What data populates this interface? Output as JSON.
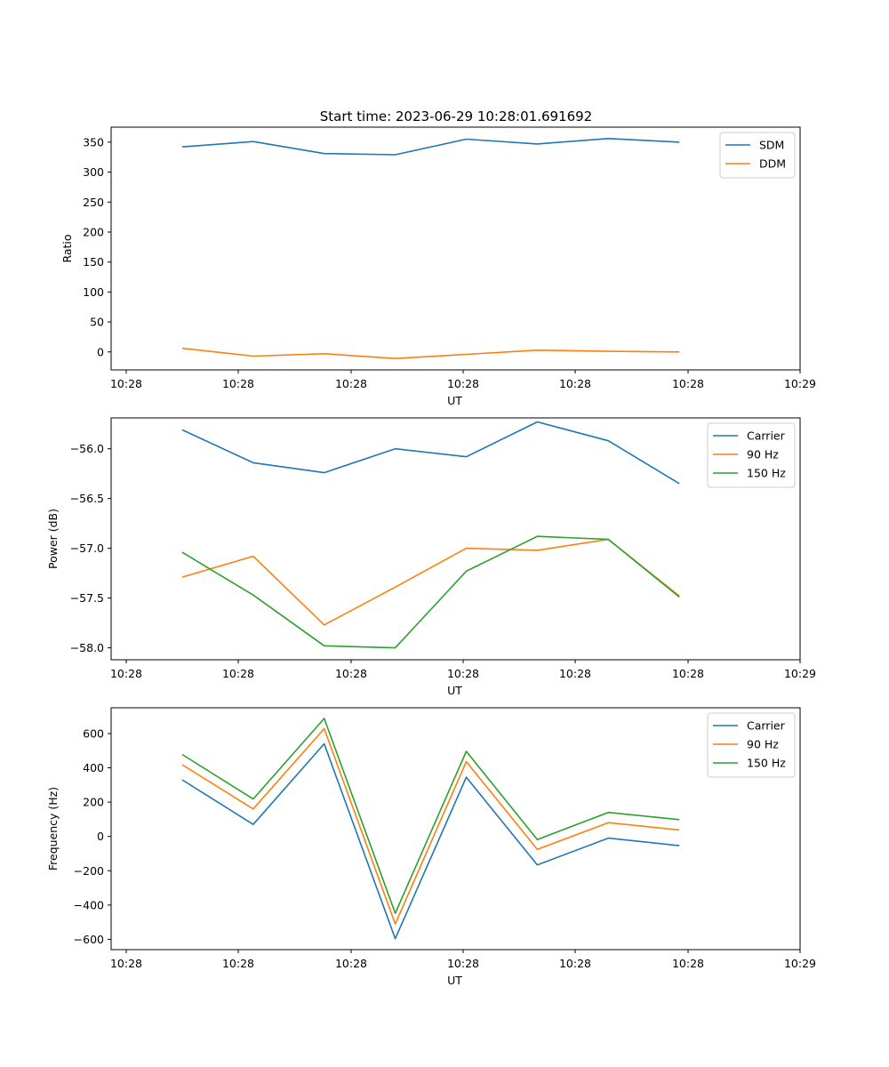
{
  "chart_data": [
    {
      "type": "line",
      "title": "Start time: 2023-06-29 10:28:01.691692",
      "xlabel": "UT",
      "ylabel": "Ratio",
      "x_tick_labels": [
        "10:28",
        "10:28",
        "10:28",
        "10:28",
        "10:28",
        "10:28",
        "10:29"
      ],
      "y_ticks": [
        0,
        50,
        100,
        150,
        200,
        250,
        300,
        350
      ],
      "xlim": [
        0,
        9.7
      ],
      "ylim": [
        -30,
        375
      ],
      "x": [
        1,
        2,
        3,
        4,
        5,
        6,
        7,
        8
      ],
      "series": [
        {
          "name": "SDM",
          "color": "#1f77b4",
          "values": [
            342,
            351,
            331,
            329,
            355,
            347,
            356,
            350
          ]
        },
        {
          "name": "DDM",
          "color": "#ff7f0e",
          "values": [
            6,
            -7,
            -3,
            -11,
            -4,
            3,
            1,
            0
          ]
        }
      ],
      "legend": "upper-right",
      "grid": false
    },
    {
      "type": "line",
      "title": "",
      "xlabel": "UT",
      "ylabel": "Power (dB)",
      "x_tick_labels": [
        "10:28",
        "10:28",
        "10:28",
        "10:28",
        "10:28",
        "10:28",
        "10:29"
      ],
      "y_ticks": [
        -58.0,
        -57.5,
        -57.0,
        -56.5,
        -56.0
      ],
      "y_tick_labels": [
        "−58.0",
        "−57.5",
        "−57.0",
        "−56.5",
        "−56.0"
      ],
      "xlim": [
        0,
        9.7
      ],
      "ylim": [
        -58.12,
        -55.69
      ],
      "x": [
        1,
        2,
        3,
        4,
        5,
        6,
        7,
        8
      ],
      "series": [
        {
          "name": "Carrier",
          "color": "#1f77b4",
          "values": [
            -55.81,
            -56.14,
            -56.24,
            -56.0,
            -56.08,
            -55.73,
            -55.92,
            -56.35
          ]
        },
        {
          "name": "90 Hz",
          "color": "#ff7f0e",
          "values": [
            -57.29,
            -57.08,
            -57.77,
            -57.39,
            -57.0,
            -57.02,
            -56.91,
            -57.48
          ]
        },
        {
          "name": "150 Hz",
          "color": "#2ca02c",
          "values": [
            -57.04,
            -57.47,
            -57.98,
            -58.0,
            -57.23,
            -56.88,
            -56.91,
            -57.49
          ]
        }
      ],
      "legend": "upper-right",
      "grid": false
    },
    {
      "type": "line",
      "title": "",
      "xlabel": "UT",
      "ylabel": "Frequency (Hz)",
      "x_tick_labels": [
        "10:28",
        "10:28",
        "10:28",
        "10:28",
        "10:28",
        "10:28",
        "10:29"
      ],
      "y_ticks": [
        -600,
        -400,
        -200,
        0,
        200,
        400,
        600
      ],
      "y_tick_labels": [
        "−600",
        "−400",
        "−200",
        "0",
        "200",
        "400",
        "600"
      ],
      "xlim": [
        0,
        9.7
      ],
      "ylim": [
        -660,
        750
      ],
      "x": [
        1,
        2,
        3,
        4,
        5,
        6,
        7,
        8
      ],
      "series": [
        {
          "name": "Carrier",
          "color": "#1f77b4",
          "values": [
            330,
            70,
            540,
            -596,
            345,
            -166,
            -10,
            -54
          ]
        },
        {
          "name": "90 Hz",
          "color": "#ff7f0e",
          "values": [
            418,
            160,
            628,
            -510,
            436,
            -76,
            80,
            38
          ]
        },
        {
          "name": "150 Hz",
          "color": "#2ca02c",
          "values": [
            478,
            218,
            688,
            -448,
            496,
            -18,
            140,
            98
          ]
        }
      ],
      "legend": "upper-right",
      "grid": false
    }
  ]
}
